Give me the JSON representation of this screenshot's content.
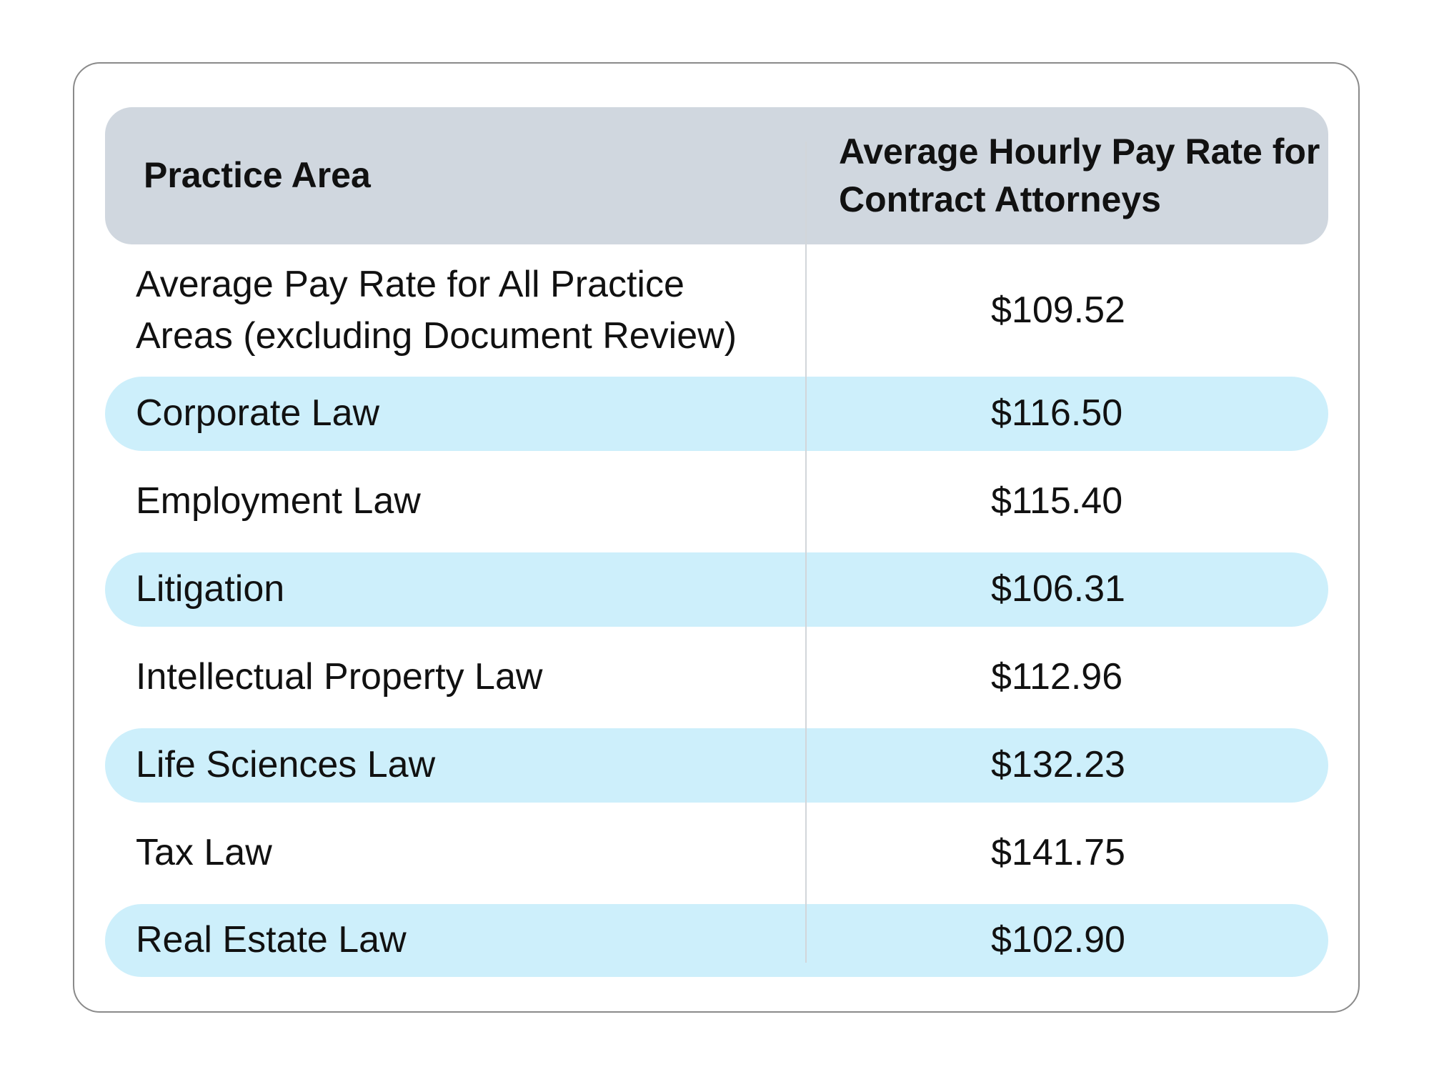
{
  "table": {
    "columns": [
      "Practice Area",
      "Average Hourly Pay Rate for Contract Attorneys"
    ],
    "rows": [
      [
        "Average Pay Rate for All Practice Areas (excluding Document Review)",
        "$109.52"
      ],
      [
        "Corporate Law",
        "$116.50"
      ],
      [
        "Employment Law",
        "$115.40"
      ],
      [
        "Litigation",
        "$106.31"
      ],
      [
        "Intellectual Property Law",
        "$112.96"
      ],
      [
        "Life Sciences Law",
        "$132.23"
      ],
      [
        "Tax Law",
        "$141.75"
      ],
      [
        "Real Estate Law",
        "$102.90"
      ]
    ]
  }
}
